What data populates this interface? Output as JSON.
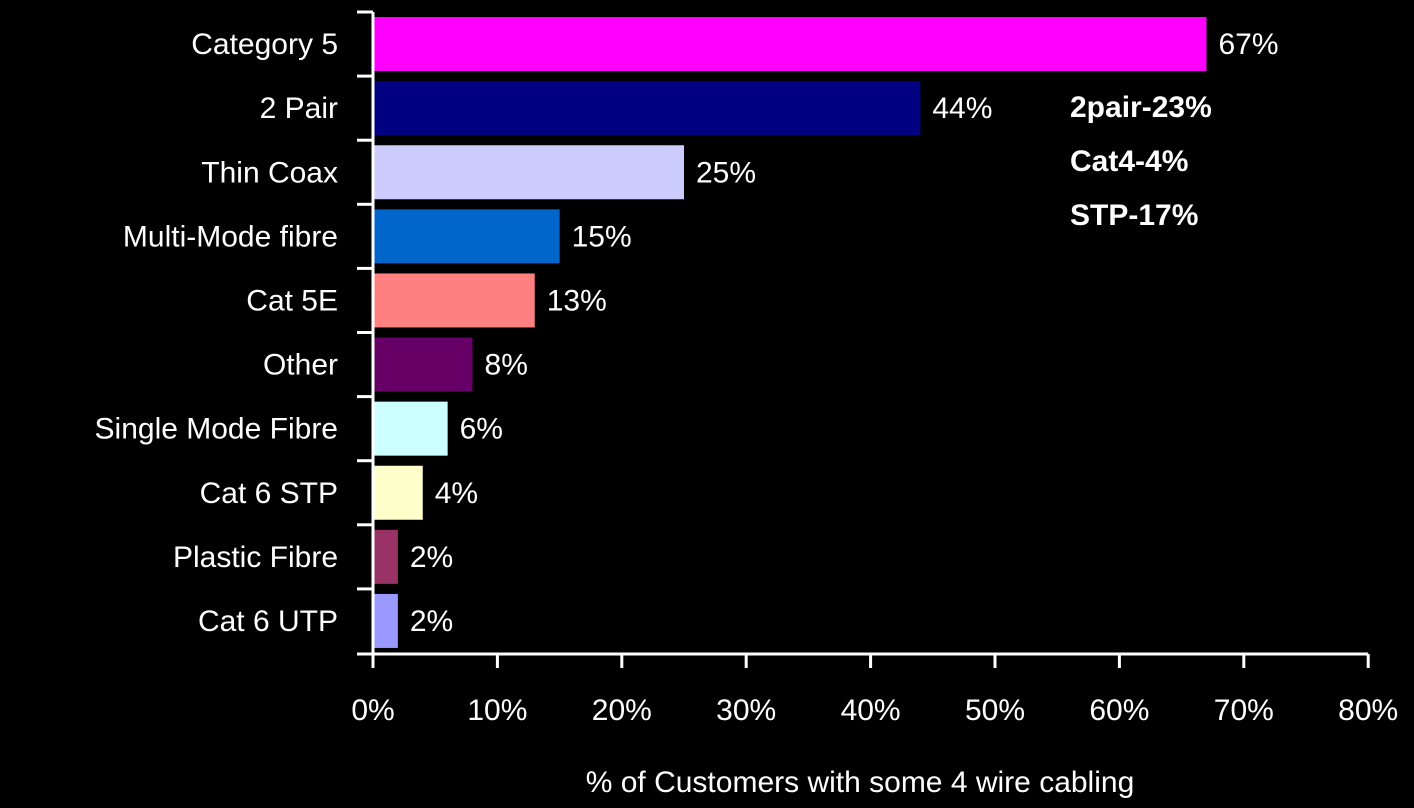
{
  "chart_data": {
    "type": "bar",
    "orientation": "horizontal",
    "categories": [
      "Category 5",
      "2 Pair",
      "Thin Coax",
      "Multi-Mode fibre",
      "Cat 5E",
      "Other",
      "Single Mode Fibre",
      "Cat 6 STP",
      "Plastic Fibre",
      "Cat 6 UTP"
    ],
    "values": [
      67,
      44,
      25,
      15,
      13,
      8,
      6,
      4,
      2,
      2
    ],
    "value_labels": [
      "67%",
      "44%",
      "25%",
      "15%",
      "13%",
      "8%",
      "6%",
      "4%",
      "2%",
      "2%"
    ],
    "bar_colors": [
      "#ff00ff",
      "#000080",
      "#ccccff",
      "#0066cc",
      "#ff8080",
      "#660066",
      "#ccffff",
      "#ffffcc",
      "#993366",
      "#9999ff"
    ],
    "xlabel": "% of Customers with some 4 wire cabling",
    "ylabel": "",
    "xlim": [
      0,
      80
    ],
    "x_ticks": [
      "0%",
      "10%",
      "20%",
      "30%",
      "40%",
      "50%",
      "60%",
      "70%",
      "80%"
    ],
    "grid": false,
    "annotations": [
      "2pair-23%",
      "Cat4-4%",
      "STP-17%"
    ],
    "background": "#000000",
    "text_color": "#ffffff"
  }
}
